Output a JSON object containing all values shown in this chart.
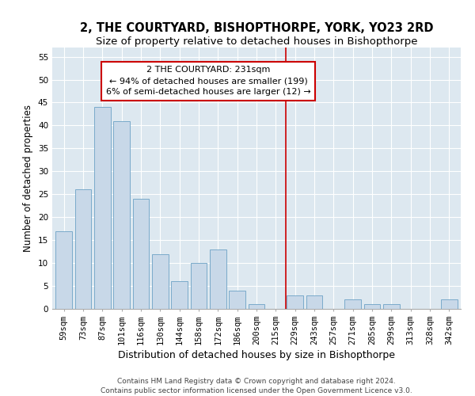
{
  "title": "2, THE COURTYARD, BISHOPTHORPE, YORK, YO23 2RD",
  "subtitle": "Size of property relative to detached houses in Bishopthorpe",
  "xlabel": "Distribution of detached houses by size in Bishopthorpe",
  "ylabel": "Number of detached properties",
  "categories": [
    "59sqm",
    "73sqm",
    "87sqm",
    "101sqm",
    "116sqm",
    "130sqm",
    "144sqm",
    "158sqm",
    "172sqm",
    "186sqm",
    "200sqm",
    "215sqm",
    "229sqm",
    "243sqm",
    "257sqm",
    "271sqm",
    "285sqm",
    "299sqm",
    "313sqm",
    "328sqm",
    "342sqm"
  ],
  "values": [
    17,
    26,
    44,
    41,
    24,
    12,
    6,
    10,
    13,
    4,
    1,
    0,
    3,
    3,
    0,
    2,
    1,
    1,
    0,
    0,
    2
  ],
  "bar_color": "#c8d8e8",
  "bar_edge_color": "#7aaaca",
  "vline_x_index": 11.5,
  "vline_color": "#cc0000",
  "annotation_text": "2 THE COURTYARD: 231sqm\n← 94% of detached houses are smaller (199)\n6% of semi-detached houses are larger (12) →",
  "annotation_box_color": "#ffffff",
  "annotation_box_edge_color": "#cc0000",
  "ylim": [
    0,
    57
  ],
  "yticks": [
    0,
    5,
    10,
    15,
    20,
    25,
    30,
    35,
    40,
    45,
    50,
    55
  ],
  "background_color": "#dde8f0",
  "footer": "Contains HM Land Registry data © Crown copyright and database right 2024.\nContains public sector information licensed under the Open Government Licence v3.0.",
  "title_fontsize": 10.5,
  "subtitle_fontsize": 9.5,
  "xlabel_fontsize": 9,
  "ylabel_fontsize": 8.5,
  "tick_fontsize": 7.5,
  "annotation_fontsize": 8,
  "footer_fontsize": 6.5
}
